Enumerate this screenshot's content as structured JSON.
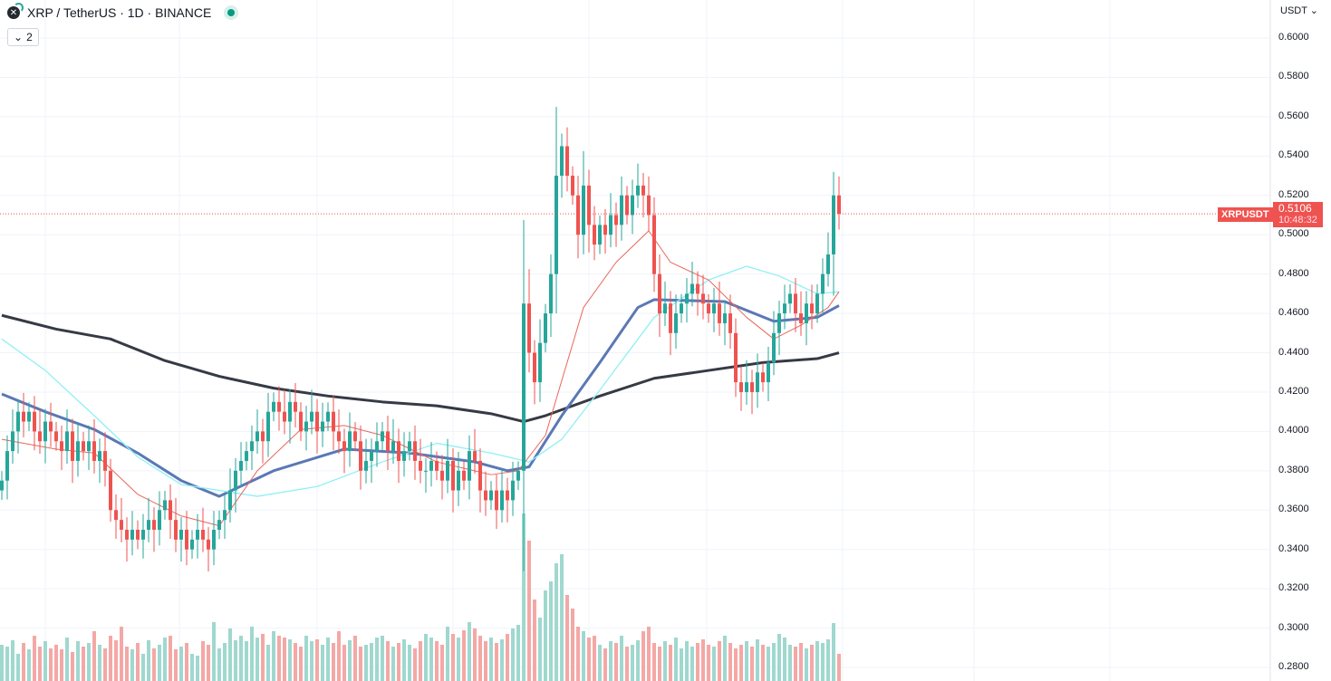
{
  "header": {
    "symbol": "XRP",
    "title": "XRP / TetherUS · 1D · BINANCE",
    "status_color": "#089981",
    "collapse_label": "2"
  },
  "price_scale": {
    "currency": "USDT",
    "ticks": [
      "0.6000",
      "0.5800",
      "0.5600",
      "0.5400",
      "0.5200",
      "0.5000",
      "0.4800",
      "0.4600",
      "0.4400",
      "0.4200",
      "0.4000",
      "0.3800",
      "0.3600",
      "0.3400",
      "0.3200",
      "0.3000",
      "0.2800"
    ]
  },
  "last_price": {
    "symbol_label": "XRPUSDT",
    "price": "0.5106",
    "countdown": "10:48:32",
    "color": "#ef5350"
  },
  "chart_data": {
    "type": "candlestick",
    "timeframe": "1D",
    "ylim": [
      0.28,
      0.6
    ],
    "grid": true,
    "up_color": "#26a69a",
    "down_color": "#ef5350",
    "closes": [
      0.375,
      0.39,
      0.4,
      0.41,
      0.405,
      0.41,
      0.4,
      0.395,
      0.405,
      0.4,
      0.395,
      0.39,
      0.4,
      0.385,
      0.395,
      0.39,
      0.395,
      0.385,
      0.39,
      0.38,
      0.36,
      0.355,
      0.35,
      0.345,
      0.35,
      0.345,
      0.35,
      0.355,
      0.35,
      0.36,
      0.365,
      0.355,
      0.345,
      0.35,
      0.34,
      0.345,
      0.35,
      0.345,
      0.34,
      0.35,
      0.355,
      0.36,
      0.37,
      0.38,
      0.385,
      0.39,
      0.395,
      0.4,
      0.395,
      0.41,
      0.415,
      0.41,
      0.405,
      0.415,
      0.41,
      0.4,
      0.405,
      0.41,
      0.4,
      0.405,
      0.41,
      0.4,
      0.395,
      0.39,
      0.4,
      0.395,
      0.38,
      0.385,
      0.39,
      0.395,
      0.4,
      0.39,
      0.395,
      0.385,
      0.39,
      0.395,
      0.385,
      0.38,
      0.38,
      0.385,
      0.38,
      0.375,
      0.385,
      0.37,
      0.38,
      0.375,
      0.39,
      0.385,
      0.37,
      0.365,
      0.37,
      0.36,
      0.37,
      0.365,
      0.375,
      0.38,
      0.465,
      0.44,
      0.425,
      0.445,
      0.46,
      0.48,
      0.53,
      0.545,
      0.53,
      0.52,
      0.5,
      0.525,
      0.505,
      0.495,
      0.505,
      0.5,
      0.51,
      0.505,
      0.52,
      0.51,
      0.52,
      0.525,
      0.52,
      0.51,
      0.48,
      0.46,
      0.465,
      0.45,
      0.46,
      0.465,
      0.47,
      0.475,
      0.47,
      0.465,
      0.46,
      0.465,
      0.455,
      0.46,
      0.45,
      0.425,
      0.42,
      0.425,
      0.42,
      0.43,
      0.425,
      0.435,
      0.45,
      0.46,
      0.465,
      0.47,
      0.46,
      0.455,
      0.465,
      0.46,
      0.47,
      0.48,
      0.49,
      0.52,
      0.5106
    ],
    "volume": [
      40,
      38,
      45,
      30,
      42,
      35,
      50,
      38,
      44,
      36,
      40,
      35,
      48,
      32,
      44,
      38,
      42,
      55,
      40,
      36,
      50,
      45,
      60,
      38,
      35,
      42,
      30,
      45,
      36,
      40,
      48,
      50,
      35,
      38,
      42,
      30,
      28,
      44,
      40,
      65,
      36,
      42,
      58,
      45,
      50,
      44,
      60,
      48,
      52,
      40,
      55,
      50,
      48,
      46,
      42,
      38,
      50,
      44,
      46,
      40,
      48,
      42,
      55,
      40,
      45,
      50,
      38,
      40,
      42,
      48,
      50,
      44,
      38,
      42,
      46,
      40,
      36,
      44,
      52,
      48,
      44,
      40,
      60,
      52,
      48,
      56,
      65,
      58,
      50,
      44,
      48,
      42,
      46,
      52,
      58,
      62,
      185,
      155,
      90,
      70,
      100,
      110,
      130,
      140,
      95,
      80,
      60,
      55,
      48,
      50,
      40,
      36,
      44,
      42,
      50,
      38,
      40,
      45,
      55,
      60,
      42,
      38,
      44,
      40,
      48,
      36,
      44,
      38,
      42,
      46,
      40,
      38,
      44,
      50,
      42,
      36,
      40,
      44,
      38,
      46,
      40,
      38,
      42,
      52,
      48,
      40,
      38,
      42,
      36,
      40,
      44,
      42,
      46,
      64,
      30
    ],
    "moving_averages": [
      {
        "color": "#363a45",
        "points": [
          [
            0,
            0.459
          ],
          [
            10,
            0.452
          ],
          [
            20,
            0.447
          ],
          [
            30,
            0.436
          ],
          [
            40,
            0.428
          ],
          [
            50,
            0.422
          ],
          [
            60,
            0.418
          ],
          [
            70,
            0.415
          ],
          [
            80,
            0.413
          ],
          [
            90,
            0.409
          ],
          [
            96,
            0.405
          ],
          [
            100,
            0.408
          ],
          [
            110,
            0.418
          ],
          [
            120,
            0.427
          ],
          [
            130,
            0.431
          ],
          [
            140,
            0.435
          ],
          [
            150,
            0.437
          ],
          [
            154,
            0.44
          ]
        ]
      },
      {
        "color": "#5b78b5",
        "points": [
          [
            0,
            0.419
          ],
          [
            8,
            0.41
          ],
          [
            17,
            0.401
          ],
          [
            25,
            0.389
          ],
          [
            33,
            0.375
          ],
          [
            40,
            0.367
          ],
          [
            50,
            0.38
          ],
          [
            63,
            0.391
          ],
          [
            75,
            0.389
          ],
          [
            87,
            0.3845
          ],
          [
            93,
            0.38
          ],
          [
            97,
            0.382
          ],
          [
            103,
            0.408
          ],
          [
            110,
            0.435
          ],
          [
            117,
            0.463
          ],
          [
            120,
            0.467
          ],
          [
            133,
            0.466
          ],
          [
            142,
            0.456
          ],
          [
            150,
            0.458
          ],
          [
            154,
            0.464
          ]
        ]
      },
      {
        "color": "#8ff0f5",
        "points": [
          [
            0,
            0.447
          ],
          [
            8,
            0.431
          ],
          [
            17,
            0.408
          ],
          [
            25,
            0.387
          ],
          [
            33,
            0.373
          ],
          [
            47,
            0.367
          ],
          [
            58,
            0.372
          ],
          [
            70,
            0.3845
          ],
          [
            80,
            0.394
          ],
          [
            90,
            0.389
          ],
          [
            97,
            0.3845
          ],
          [
            103,
            0.396
          ],
          [
            110,
            0.421
          ],
          [
            120,
            0.458
          ],
          [
            130,
            0.477
          ],
          [
            137,
            0.484
          ],
          [
            143,
            0.479
          ],
          [
            150,
            0.47
          ],
          [
            154,
            0.471
          ]
        ]
      },
      {
        "color": "#e8675a",
        "points": [
          [
            0,
            0.396
          ],
          [
            10,
            0.391
          ],
          [
            17,
            0.389
          ],
          [
            25,
            0.368
          ],
          [
            33,
            0.357
          ],
          [
            40,
            0.352
          ],
          [
            47,
            0.38
          ],
          [
            55,
            0.401
          ],
          [
            63,
            0.403
          ],
          [
            70,
            0.398
          ],
          [
            80,
            0.3845
          ],
          [
            90,
            0.378
          ],
          [
            95,
            0.38
          ],
          [
            100,
            0.398
          ],
          [
            107,
            0.463
          ],
          [
            113,
            0.486
          ],
          [
            119,
            0.502
          ],
          [
            123,
            0.486
          ],
          [
            130,
            0.477
          ],
          [
            137,
            0.458
          ],
          [
            142,
            0.447
          ],
          [
            147,
            0.454
          ],
          [
            152,
            0.463
          ],
          [
            154,
            0.471
          ]
        ]
      }
    ]
  }
}
